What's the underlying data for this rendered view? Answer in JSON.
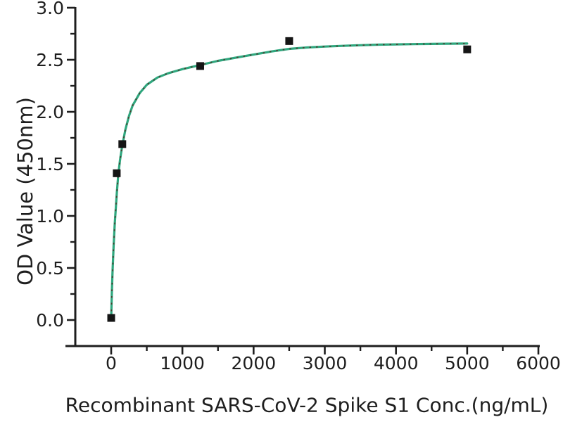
{
  "figure": {
    "background": "#ffffff"
  },
  "chart_data": {
    "type": "scatter",
    "title": "",
    "xlabel": "Recombinant SARS-CoV-2 Spike S1 Conc.(ng/mL)",
    "ylabel": "OD Value (450nm)",
    "xlim": [
      -650,
      6050
    ],
    "ylim": [
      -0.25,
      3.0
    ],
    "grid": false,
    "legend": "none",
    "x_ticks": [
      0,
      1000,
      2000,
      3000,
      4000,
      5000,
      6000
    ],
    "x_tick_labels": [
      "0",
      "1000",
      "2000",
      "3000",
      "4000",
      "5000",
      "6000"
    ],
    "x_minor_ticks": [
      500,
      1500,
      2500,
      3500,
      4500,
      5500
    ],
    "y_ticks": [
      0.0,
      0.5,
      1.0,
      1.5,
      2.0,
      2.5,
      3.0
    ],
    "y_tick_labels": [
      "0.0",
      "0.5",
      "1.0",
      "1.5",
      "2.0",
      "2.5",
      "3.0"
    ],
    "y_minor_ticks": [
      0.25,
      0.75,
      1.25,
      1.75,
      2.25,
      2.75
    ],
    "series": [
      {
        "name": "measured-od-points",
        "marker": "square",
        "points": [
          {
            "x": 0,
            "y": 0.02
          },
          {
            "x": 78,
            "y": 1.41
          },
          {
            "x": 156,
            "y": 1.69
          },
          {
            "x": 1250,
            "y": 2.44
          },
          {
            "x": 2500,
            "y": 2.68
          },
          {
            "x": 5000,
            "y": 2.6
          }
        ]
      },
      {
        "name": "fit-curve",
        "marker": "none",
        "points": [
          {
            "x": 0,
            "y": 0.02
          },
          {
            "x": 5,
            "y": 0.15
          },
          {
            "x": 10,
            "y": 0.28
          },
          {
            "x": 20,
            "y": 0.48
          },
          {
            "x": 35,
            "y": 0.72
          },
          {
            "x": 50,
            "y": 0.93
          },
          {
            "x": 65,
            "y": 1.08
          },
          {
            "x": 80,
            "y": 1.23
          },
          {
            "x": 100,
            "y": 1.4
          },
          {
            "x": 125,
            "y": 1.54
          },
          {
            "x": 156,
            "y": 1.68
          },
          {
            "x": 200,
            "y": 1.83
          },
          {
            "x": 250,
            "y": 1.96
          },
          {
            "x": 300,
            "y": 2.06
          },
          {
            "x": 400,
            "y": 2.18
          },
          {
            "x": 500,
            "y": 2.26
          },
          {
            "x": 650,
            "y": 2.33
          },
          {
            "x": 800,
            "y": 2.37
          },
          {
            "x": 1000,
            "y": 2.41
          },
          {
            "x": 1250,
            "y": 2.45
          },
          {
            "x": 1500,
            "y": 2.49
          },
          {
            "x": 1750,
            "y": 2.52
          },
          {
            "x": 2000,
            "y": 2.55
          },
          {
            "x": 2250,
            "y": 2.58
          },
          {
            "x": 2500,
            "y": 2.605
          },
          {
            "x": 2750,
            "y": 2.618
          },
          {
            "x": 3000,
            "y": 2.627
          },
          {
            "x": 3250,
            "y": 2.634
          },
          {
            "x": 3500,
            "y": 2.64
          },
          {
            "x": 3750,
            "y": 2.645
          },
          {
            "x": 4000,
            "y": 2.648
          },
          {
            "x": 4250,
            "y": 2.651
          },
          {
            "x": 4500,
            "y": 2.653
          },
          {
            "x": 4750,
            "y": 2.655
          },
          {
            "x": 5000,
            "y": 2.656
          }
        ]
      }
    ],
    "colors": {
      "curve": "#2fa77e",
      "curve_dash_overlay": "#54231d",
      "marker": "#151515",
      "axis": "#1e1e1e",
      "tick_text": "#1e1e1e"
    }
  }
}
